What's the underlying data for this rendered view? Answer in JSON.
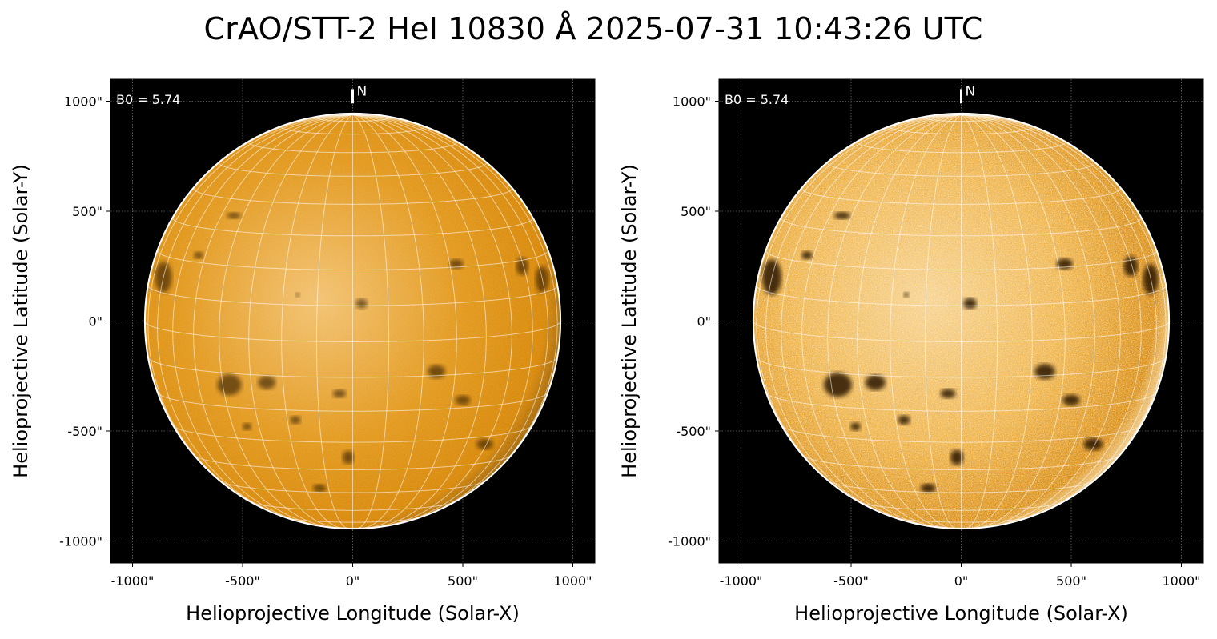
{
  "figure": {
    "title": "CrAO/STT-2 HeI 10830 Å 2025-07-31 10:43:26 UTC"
  },
  "colors": {
    "disk_base": "#d98a0b",
    "disk_light": "#f3c374",
    "background": "#000000",
    "grid": "#ffffff"
  },
  "panels": [
    {
      "id": "left",
      "xlabel": "Helioprojective Longitude (Solar-X)",
      "ylabel": "Helioprojective Latitude (Solar-Y)",
      "annotation": "B0 = 5.74",
      "north_label": "N",
      "contrast": "normal",
      "xlim": [
        -1100,
        1100
      ],
      "ylim": [
        -1100,
        1100
      ],
      "xticks": [
        -1000,
        -500,
        0,
        500,
        1000
      ],
      "yticks": [
        -1000,
        -500,
        0,
        500,
        1000
      ],
      "xtick_labels": [
        "-1000\"",
        "-500\"",
        "0\"",
        "500\"",
        "1000\""
      ],
      "ytick_labels": [
        "-1000\"",
        "-500\"",
        "0\"",
        "500\"",
        "1000\""
      ]
    },
    {
      "id": "right",
      "xlabel": "Helioprojective Longitude (Solar-X)",
      "ylabel": "Helioprojective Latitude (Solar-Y)",
      "annotation": "B0 = 5.74",
      "north_label": "N",
      "contrast": "enhanced",
      "xlim": [
        -1100,
        1100
      ],
      "ylim": [
        -1100,
        1100
      ],
      "xticks": [
        -1000,
        -500,
        0,
        500,
        1000
      ],
      "yticks": [
        -1000,
        -500,
        0,
        500,
        1000
      ],
      "xtick_labels": [
        "-1000\"",
        "-500\"",
        "0\"",
        "500\"",
        "1000\""
      ],
      "ytick_labels": [
        "-1000\"",
        "-500\"",
        "0\"",
        "500\"",
        "1000\""
      ]
    }
  ],
  "solar": {
    "radius_arcsec": 944,
    "b0_deg": 5.74
  }
}
